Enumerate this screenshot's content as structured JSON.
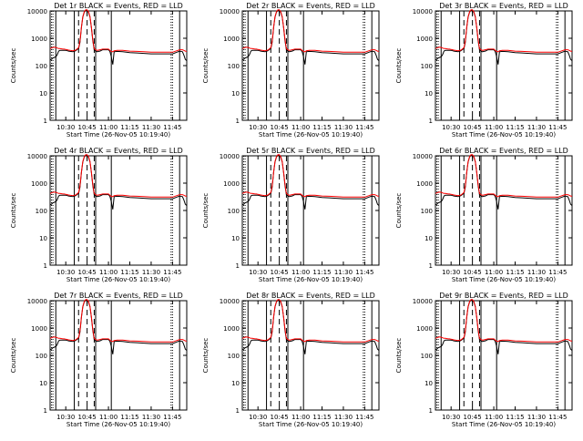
{
  "x_ticks": [
    "10:30",
    "10:45",
    "11:00",
    "11:15",
    "11:30",
    "11:45"
  ],
  "y_ticks": [
    "1",
    "10",
    "100",
    "1000",
    "10000"
  ],
  "xlabel": "Start Time (26-Nov-05 10:19:40)",
  "ylabel": "Counts/sec",
  "colors": {
    "events": "#000000",
    "lld": "#ff0000"
  },
  "chart_data": {
    "type": "line",
    "layout": "3x3 grid of panels",
    "yscale": "log",
    "ylim": [
      1,
      10000
    ],
    "xlim": [
      "10:19",
      "11:55"
    ],
    "grid": false,
    "panels": [
      {
        "title": "Det 1r BLACK = Events, RED = LLD",
        "label": "det-1r"
      },
      {
        "title": "Det 2r BLACK = Events, RED = LLD",
        "label": "det-2r"
      },
      {
        "title": "Det 3r BLACK = Events, RED = LLD",
        "label": "det-3r"
      },
      {
        "title": "Det 4r BLACK = Events, RED = LLD",
        "label": "det-4r"
      },
      {
        "title": "Det 5r BLACK = Events, RED = LLD",
        "label": "det-5r"
      },
      {
        "title": "Det 6r BLACK = Events, RED = LLD",
        "label": "det-6r"
      },
      {
        "title": "Det 7r BLACK = Events, RED = LLD",
        "label": "det-7r"
      },
      {
        "title": "Det 8r BLACK = Events, RED = LLD",
        "label": "det-8r"
      },
      {
        "title": "Det 9r BLACK = Events, RED = LLD",
        "label": "det-9r"
      }
    ],
    "series": [
      {
        "color": "#000000",
        "x": [
          "10:19",
          "10:20",
          "10:21",
          "10:22",
          "10:23",
          "10:24",
          "10:25",
          "10:26",
          "10:27",
          "10:28",
          "10:29",
          "10:30",
          "10:31",
          "10:32",
          "10:33",
          "10:35",
          "10:37",
          "10:38",
          "10:39",
          "10:40",
          "10:41",
          "10:42",
          "10:43",
          "10:44",
          "10:45",
          "10:46",
          "10:47",
          "10:48",
          "10:49",
          "10:50",
          "10:51",
          "10:52",
          "10:53",
          "10:54",
          "10:56",
          "10:58",
          "11:00",
          "11:01",
          "11:02",
          "11:03",
          "11:04",
          "11:06",
          "11:10",
          "11:15",
          "11:20",
          "11:25",
          "11:30",
          "11:35",
          "11:40",
          "11:45",
          "11:48",
          "11:50",
          "11:52",
          "11:53",
          "11:54",
          "11:55"
        ],
        "y": [
          160,
          170,
          190,
          200,
          210,
          250,
          340,
          360,
          360,
          360,
          360,
          360,
          350,
          340,
          330,
          320,
          350,
          390,
          420,
          700,
          2500,
          6000,
          9000,
          10500,
          10500,
          9000,
          6000,
          2500,
          800,
          380,
          340,
          320,
          330,
          340,
          380,
          380,
          380,
          330,
          210,
          110,
          320,
          330,
          320,
          300,
          290,
          280,
          270,
          270,
          270,
          270,
          310,
          340,
          320,
          240,
          170,
          150
        ]
      },
      {
        "color": "#ff0000",
        "x": [
          "10:19",
          "10:20",
          "10:21",
          "10:22",
          "10:23",
          "10:24",
          "10:25",
          "10:26",
          "10:27",
          "10:28",
          "10:29",
          "10:30",
          "10:31",
          "10:32",
          "10:33",
          "10:35",
          "10:37",
          "10:38",
          "10:39",
          "10:40",
          "10:41",
          "10:42",
          "10:43",
          "10:44",
          "10:45",
          "10:46",
          "10:47",
          "10:48",
          "10:49",
          "10:50",
          "10:51",
          "10:52",
          "10:53",
          "10:54",
          "10:56",
          "10:58",
          "11:00",
          "11:01",
          "11:02",
          "11:03",
          "11:04",
          "11:06",
          "11:10",
          "11:15",
          "11:20",
          "11:25",
          "11:30",
          "11:35",
          "11:40",
          "11:45",
          "11:48",
          "11:50",
          "11:52",
          "11:53",
          "11:54",
          "11:55"
        ],
        "y": [
          420,
          440,
          460,
          470,
          460,
          440,
          420,
          420,
          410,
          400,
          400,
          390,
          380,
          370,
          360,
          350,
          370,
          410,
          450,
          800,
          2600,
          6200,
          9300,
          11000,
          11000,
          9300,
          6200,
          2600,
          900,
          420,
          380,
          360,
          370,
          380,
          400,
          400,
          400,
          360,
          330,
          320,
          350,
          360,
          360,
          340,
          330,
          320,
          310,
          310,
          310,
          310,
          350,
          380,
          380,
          360,
          340,
          330
        ]
      }
    ],
    "annotations": {
      "solid_vertical_lines": [
        "10:23",
        "10:36",
        "10:51",
        "11:02",
        "11:50"
      ],
      "dashed_vertical_lines": [
        "10:39",
        "10:45",
        "10:50"
      ],
      "dotted_vertical_lines": [
        "10:20",
        "10:21",
        "11:44",
        "11:45"
      ]
    }
  }
}
